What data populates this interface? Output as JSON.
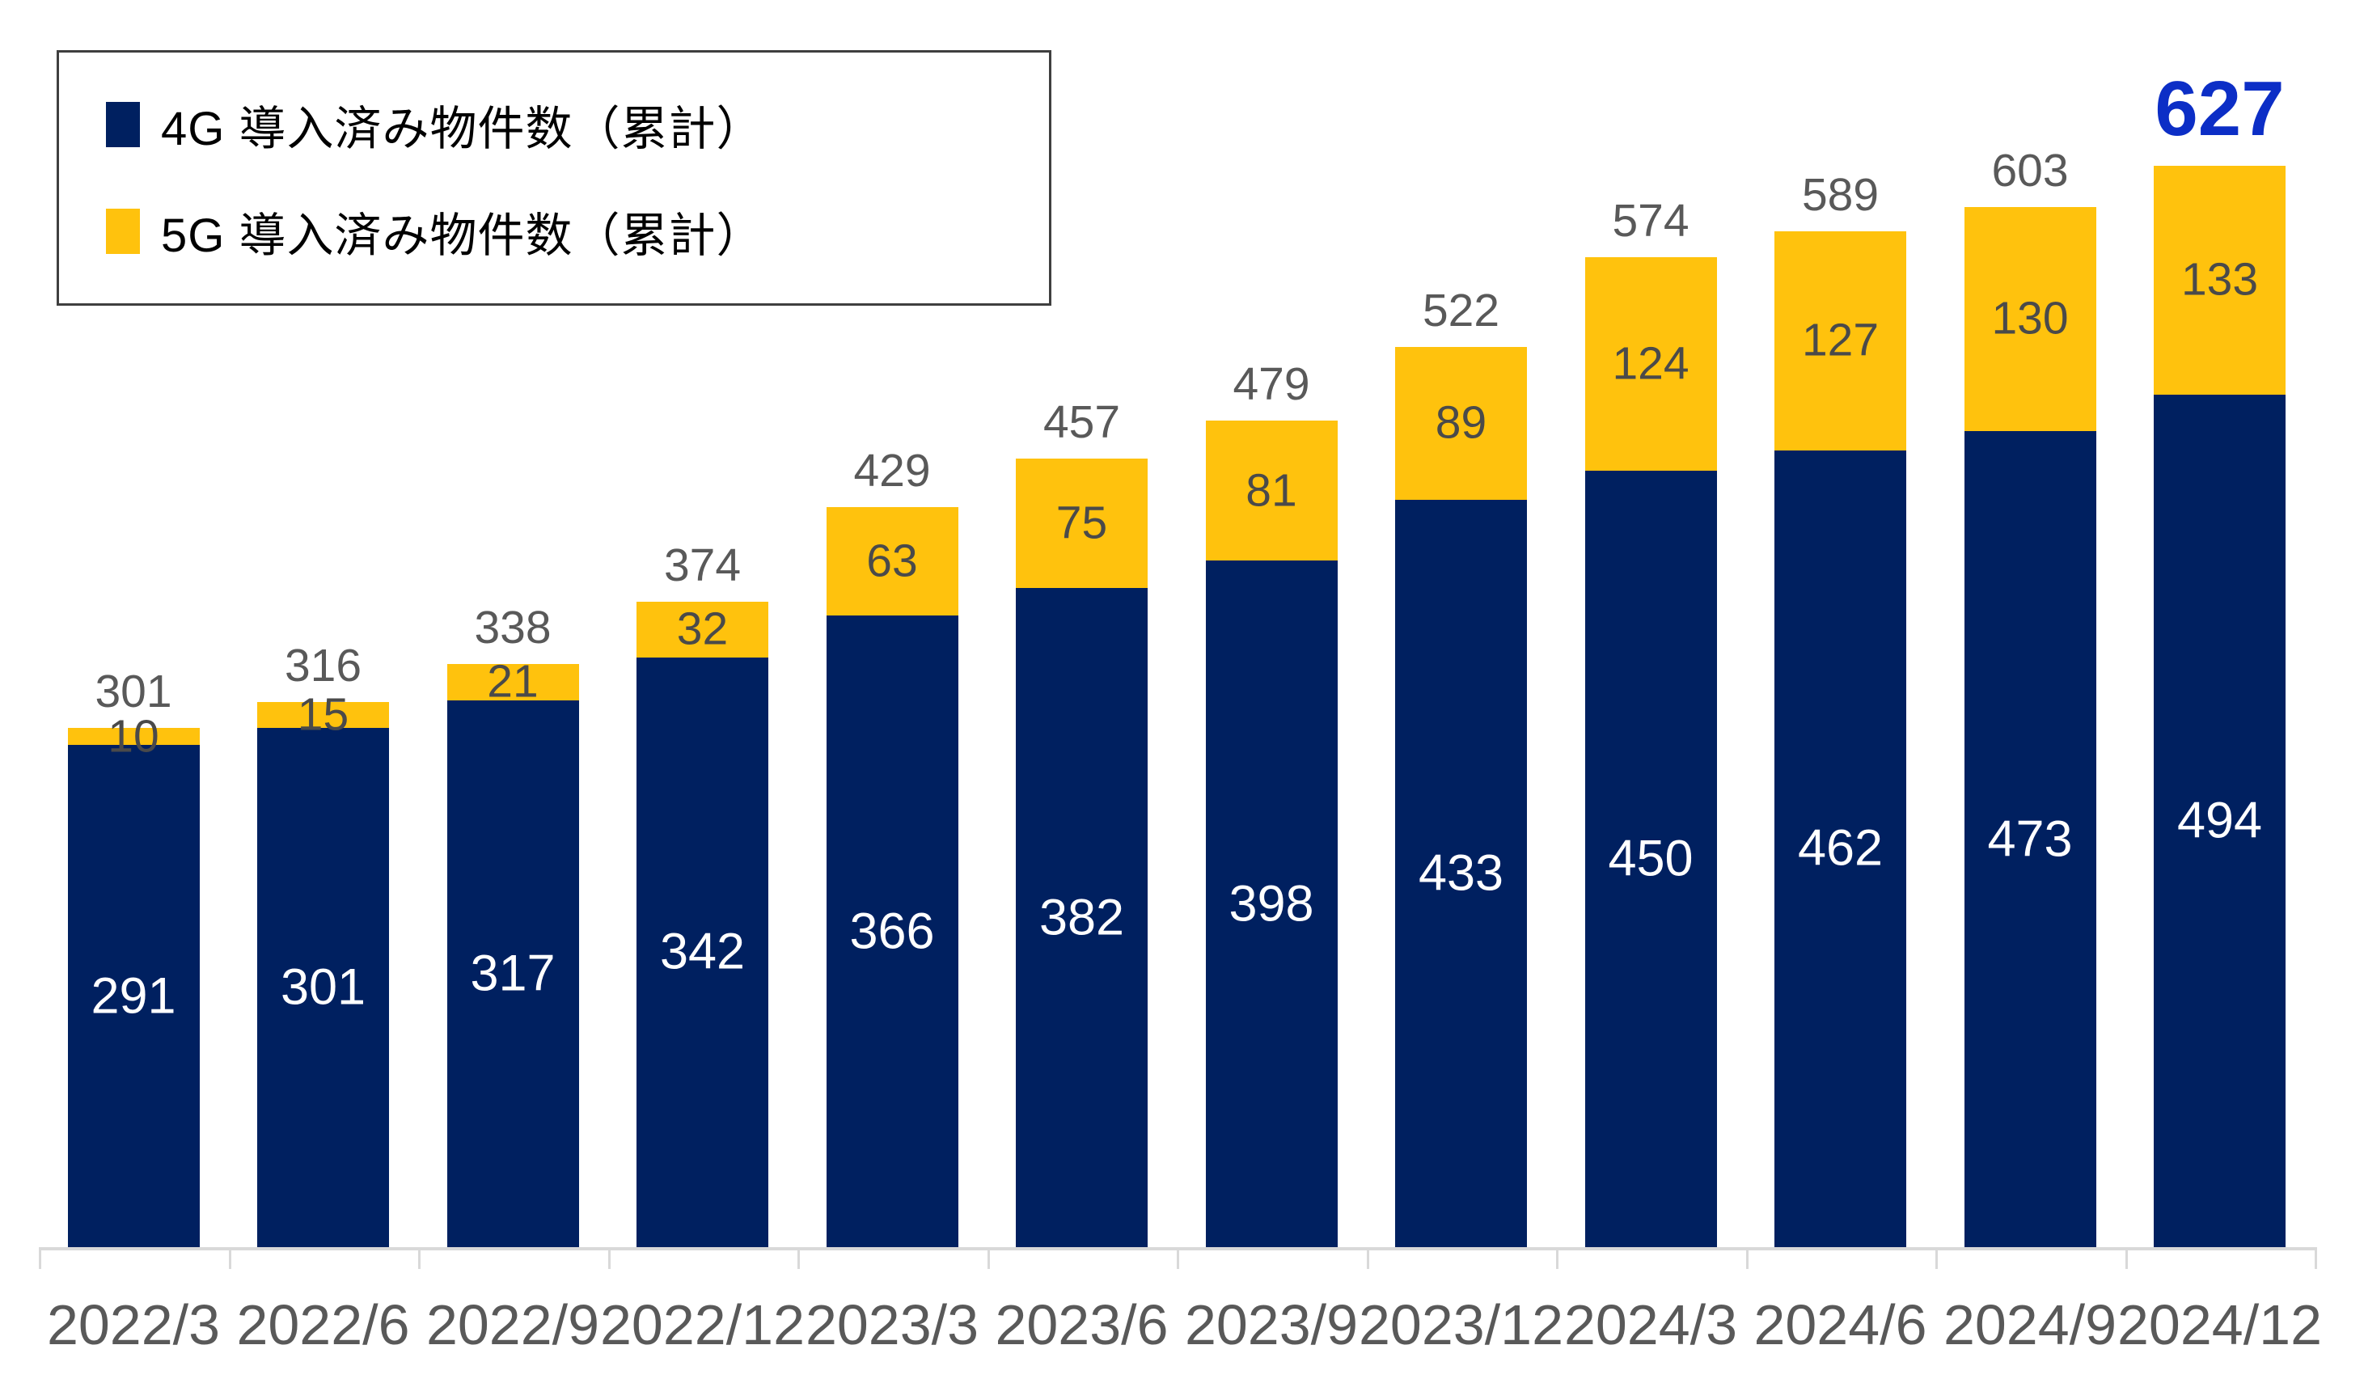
{
  "chart_data": {
    "type": "bar",
    "stacked": true,
    "title": "",
    "xlabel": "",
    "ylabel": "",
    "grid": false,
    "legend_position": "top-left",
    "ylim": [
      0,
      723
    ],
    "categories": [
      "2022/3",
      "2022/6",
      "2022/9",
      "2022/12",
      "2023/3",
      "2023/6",
      "2023/9",
      "2023/12",
      "2024/3",
      "2024/6",
      "2024/9",
      "2024/12"
    ],
    "series": [
      {
        "name": "4G 導入済み物件数（累計）",
        "color": "#002060",
        "label_color": "#FFFFFF",
        "values": [
          291,
          301,
          317,
          342,
          366,
          382,
          398,
          433,
          450,
          462,
          473,
          494
        ]
      },
      {
        "name": "5G 導入済み物件数（累計）",
        "color": "#FFC20D",
        "label_color": "#4A4A4A",
        "values": [
          10,
          15,
          21,
          32,
          63,
          75,
          81,
          89,
          124,
          127,
          130,
          133
        ]
      }
    ],
    "totals": [
      301,
      316,
      338,
      374,
      429,
      457,
      479,
      522,
      574,
      589,
      603,
      627
    ],
    "total_label_color": "#595959",
    "highlight": {
      "index": 11,
      "value": 627,
      "color": "#0C2EC6"
    }
  },
  "colors": {
    "background": "#FFFFFF",
    "axis_line": "#D9D9D9",
    "tick": "#D9D9D9",
    "legend_border": "#3F3F3F"
  }
}
